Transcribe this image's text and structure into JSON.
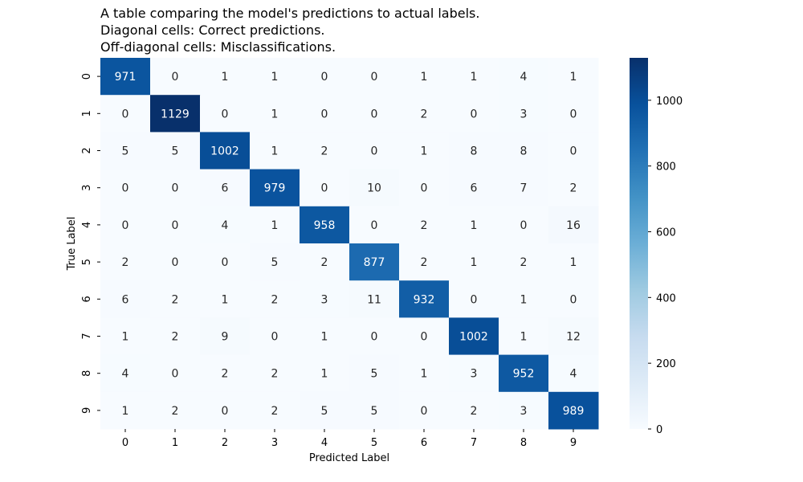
{
  "chart_data": {
    "type": "heatmap",
    "title_lines": [
      "A table comparing the model's predictions to actual labels.",
      "Diagonal cells: Correct predictions.",
      "Off-diagonal cells: Misclassifications."
    ],
    "xlabel": "Predicted Label",
    "ylabel": "True Label",
    "x_categories": [
      "0",
      "1",
      "2",
      "3",
      "4",
      "5",
      "6",
      "7",
      "8",
      "9"
    ],
    "y_categories": [
      "0",
      "1",
      "2",
      "3",
      "4",
      "5",
      "6",
      "7",
      "8",
      "9"
    ],
    "matrix": [
      [
        971,
        0,
        1,
        1,
        0,
        0,
        1,
        1,
        4,
        1
      ],
      [
        0,
        1129,
        0,
        1,
        0,
        0,
        2,
        0,
        3,
        0
      ],
      [
        5,
        5,
        1002,
        1,
        2,
        0,
        1,
        8,
        8,
        0
      ],
      [
        0,
        0,
        6,
        979,
        0,
        10,
        0,
        6,
        7,
        2
      ],
      [
        0,
        0,
        4,
        1,
        958,
        0,
        2,
        1,
        0,
        16
      ],
      [
        2,
        0,
        0,
        5,
        2,
        877,
        2,
        1,
        2,
        1
      ],
      [
        6,
        2,
        1,
        2,
        3,
        11,
        932,
        0,
        1,
        0
      ],
      [
        1,
        2,
        9,
        0,
        1,
        0,
        0,
        1002,
        1,
        12
      ],
      [
        4,
        0,
        2,
        2,
        1,
        5,
        1,
        3,
        952,
        4
      ],
      [
        1,
        2,
        0,
        2,
        5,
        5,
        0,
        2,
        3,
        989
      ]
    ],
    "colorbar": {
      "colormap": "Blues",
      "vmin": 0,
      "vmax": 1129,
      "ticks": [
        0,
        200,
        400,
        600,
        800,
        1000
      ]
    }
  }
}
